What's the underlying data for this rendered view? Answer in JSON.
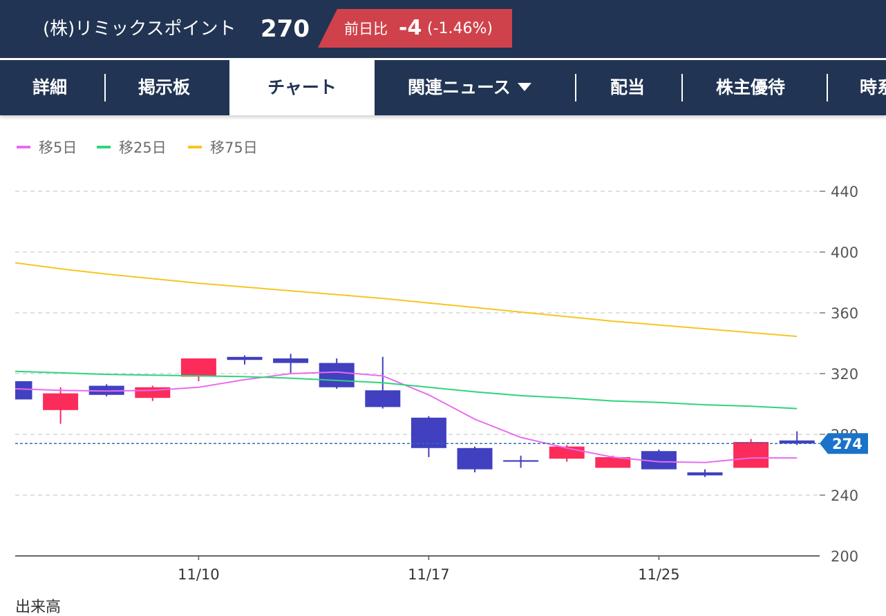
{
  "header": {
    "stock_name": "(株)リミックスポイント",
    "price": "270",
    "change_label": "前日比",
    "change_value": "-4",
    "change_percent": "(-1.46%)"
  },
  "tabs": [
    {
      "label": "詳細"
    },
    {
      "label": "掲示板"
    },
    {
      "label": "チャート"
    },
    {
      "label": "関連ニュース"
    },
    {
      "label": "配当"
    },
    {
      "label": "株主優待"
    },
    {
      "label": "時系"
    }
  ],
  "legend": [
    {
      "label": "移5日",
      "color": "#e86bf0"
    },
    {
      "label": "移25日",
      "color": "#2ed47a"
    },
    {
      "label": "移75日",
      "color": "#f7c51e"
    }
  ],
  "footer_partial": "出来高",
  "colors": {
    "header_bg": "#213453",
    "up": "#fb2c5a",
    "down": "#4140c0",
    "current_price_tag": "#1a73c8"
  },
  "chart_data": {
    "type": "candlestick",
    "ylim": [
      200,
      440
    ],
    "yticks": [
      440,
      400,
      360,
      320,
      280,
      240,
      200
    ],
    "xtick_labels": [
      {
        "index": 8,
        "label": "11/10"
      },
      {
        "index": 18,
        "label": "11/17"
      },
      {
        "index": 28,
        "label": "11/25"
      }
    ],
    "current_price": 274,
    "grid": true,
    "candles": [
      {
        "open": 315,
        "high": 316,
        "low": 303,
        "close": 303,
        "dir": "down",
        "partial": true
      },
      {
        "open": 296,
        "high": 311,
        "low": 287,
        "close": 307,
        "dir": "up"
      },
      {
        "open": 312,
        "high": 313,
        "low": 305,
        "close": 306,
        "dir": "down"
      },
      {
        "open": 304,
        "high": 312,
        "low": 302,
        "close": 311,
        "dir": "up"
      },
      {
        "open": 318,
        "high": 330,
        "low": 315,
        "close": 330,
        "dir": "up"
      },
      {
        "open": 331,
        "high": 332,
        "low": 326,
        "close": 329,
        "dir": "down"
      },
      {
        "open": 330,
        "high": 333,
        "low": 320,
        "close": 327,
        "dir": "down"
      },
      {
        "open": 327,
        "high": 330,
        "low": 310,
        "close": 311,
        "dir": "down"
      },
      {
        "open": 309,
        "high": 331,
        "low": 297,
        "close": 298,
        "dir": "down"
      },
      {
        "open": 291,
        "high": 292,
        "low": 265,
        "close": 271,
        "dir": "down"
      },
      {
        "open": 271,
        "high": 272,
        "low": 255,
        "close": 257,
        "dir": "down"
      },
      {
        "open": 263,
        "high": 266,
        "low": 258,
        "close": 262,
        "dir": "down"
      },
      {
        "open": 264,
        "high": 273,
        "low": 262,
        "close": 272,
        "dir": "up"
      },
      {
        "open": 258,
        "high": 266,
        "low": 258,
        "close": 265,
        "dir": "up"
      },
      {
        "open": 269,
        "high": 270,
        "low": 257,
        "close": 257,
        "dir": "down"
      },
      {
        "open": 255,
        "high": 257,
        "low": 252,
        "close": 253,
        "dir": "down"
      },
      {
        "open": 258,
        "high": 277,
        "low": 258,
        "close": 275,
        "dir": "up"
      },
      {
        "open": 276,
        "high": 282,
        "low": 273,
        "close": 274,
        "dir": "down"
      }
    ],
    "series": [
      {
        "name": "移5日",
        "color": "#e86bf0",
        "values": [
          310,
          309,
          308.5,
          309,
          311,
          316,
          320,
          321,
          318.5,
          306,
          290,
          278,
          271,
          265,
          262,
          261.5,
          264.5,
          264.5
        ]
      },
      {
        "name": "移25日",
        "color": "#2ed47a",
        "values": [
          321.5,
          320.5,
          319.5,
          319,
          318.5,
          318,
          317,
          315.5,
          314,
          311,
          308,
          305.5,
          304,
          302,
          301,
          299.5,
          298.5,
          297
        ]
      },
      {
        "name": "移75日",
        "color": "#f7c51e",
        "values": [
          393,
          389,
          385.5,
          382.5,
          379.5,
          377,
          374.5,
          372,
          369.5,
          366.5,
          363.5,
          360.5,
          357.5,
          354.5,
          352,
          349.5,
          347,
          344.5
        ]
      }
    ]
  }
}
